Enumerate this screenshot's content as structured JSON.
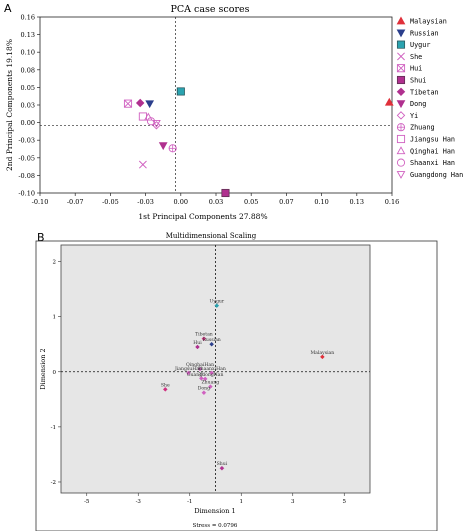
{
  "panel_labels": [
    "A",
    "B"
  ],
  "chart_data": [
    {
      "type": "scatter",
      "title": "PCA case scores",
      "xlabel": "1st Principal Components 27.88%",
      "ylabel": "2nd Principal Components 19.18%",
      "xlim": [
        -0.1,
        0.16
      ],
      "ylim": [
        -0.1,
        0.16
      ],
      "xticks": [
        -0.1,
        -0.07,
        -0.05,
        -0.03,
        0.0,
        0.03,
        0.05,
        0.07,
        0.1,
        0.13,
        0.16
      ],
      "xtick_labels": [
        "-0.10",
        "-0.07",
        "-0.05",
        "-0.03",
        "0.00",
        "0.03",
        "0.05",
        "0.07",
        "0.10",
        "0.13",
        "0.16"
      ],
      "yticks": [
        -0.1,
        -0.08,
        -0.05,
        -0.03,
        0.0,
        0.03,
        0.05,
        0.08,
        0.1,
        0.13,
        0.16
      ],
      "ytick_labels": [
        "-0.10",
        "-0.08",
        "-0.05",
        "-0.03",
        "0.00",
        "0.03",
        "0.05",
        "0.08",
        "0.10",
        "0.13",
        "0.16"
      ],
      "reference_lines": {
        "x": 0,
        "y": 0
      },
      "legend_position": "right",
      "series": [
        {
          "name": "Malaysian",
          "marker": "triangle-up-filled",
          "color": "#e0303a",
          "x": 0.158,
          "y": 0.034
        },
        {
          "name": "Russian",
          "marker": "triangle-down-filled",
          "color": "#2b3f8c",
          "x": -0.019,
          "y": 0.032
        },
        {
          "name": "Uygur",
          "marker": "square-filled",
          "color": "#2aa3b0",
          "x": 0.004,
          "y": 0.05
        },
        {
          "name": "She",
          "marker": "x",
          "color": "#d060c0",
          "x": -0.024,
          "y": -0.058
        },
        {
          "name": "Hui",
          "marker": "square-x",
          "color": "#d060c0",
          "x": -0.035,
          "y": 0.032
        },
        {
          "name": "Shui",
          "marker": "square-filled",
          "color": "#b0308f",
          "x": 0.037,
          "y": -0.1
        },
        {
          "name": "Tibetan",
          "marker": "diamond-filled",
          "color": "#b0308f",
          "x": -0.026,
          "y": 0.033
        },
        {
          "name": "Dong",
          "marker": "triangle-down-filled",
          "color": "#b0308f",
          "x": -0.009,
          "y": -0.03
        },
        {
          "name": "Yi",
          "marker": "diamond",
          "color": "#d060c0",
          "x": -0.014,
          "y": 0.0
        },
        {
          "name": "Zhuang",
          "marker": "circle-plus",
          "color": "#d060c0",
          "x": -0.002,
          "y": -0.034
        },
        {
          "name": "Jiangsu Han",
          "marker": "square",
          "color": "#d060c0",
          "x": -0.024,
          "y": 0.013
        },
        {
          "name": "Qinghai Han",
          "marker": "triangle-up",
          "color": "#d060c0",
          "x": -0.02,
          "y": 0.012
        },
        {
          "name": "Shaanxi Han",
          "marker": "circle",
          "color": "#d060c0",
          "x": -0.018,
          "y": 0.006
        },
        {
          "name": "Guangdong Han",
          "marker": "triangle-down",
          "color": "#d060c0",
          "x": -0.014,
          "y": 0.003
        }
      ]
    },
    {
      "type": "scatter",
      "title": "Multidimensional Scaling",
      "xlabel": "Dimension 1",
      "ylabel": "Dimension 2",
      "xlim": [
        -6,
        6
      ],
      "ylim": [
        -2.2,
        2.3
      ],
      "xticks": [
        -5,
        -3,
        -1,
        1,
        3,
        5
      ],
      "xtick_labels": [
        "-5",
        "-3",
        "-1",
        "1",
        "3",
        "5"
      ],
      "yticks": [
        2,
        1,
        0,
        -1,
        -2
      ],
      "ytick_labels": [
        "2",
        "1",
        "0",
        "-1",
        "-2"
      ],
      "reference_lines": {
        "x": 0,
        "y": 0
      },
      "footnote": "Stress = 0.0796",
      "points": [
        {
          "label": "Uygur",
          "color": "#2aa3b0",
          "x": 0.05,
          "y": 1.2
        },
        {
          "label": "Tibetan",
          "color": "#d03080",
          "x": -0.45,
          "y": 0.6
        },
        {
          "label": "Russian",
          "color": "#2b3f8c",
          "x": -0.15,
          "y": 0.5
        },
        {
          "label": "Hui",
          "color": "#b0308f",
          "x": -0.7,
          "y": 0.45
        },
        {
          "label": "Malaysian",
          "color": "#e0303a",
          "x": 4.15,
          "y": 0.27
        },
        {
          "label": "QinghaiHan",
          "color": "#d060c0",
          "x": -0.6,
          "y": 0.05
        },
        {
          "label": "JiangsuHan",
          "color": "#d060c0",
          "x": -1.05,
          "y": -0.02
        },
        {
          "label": "ShaanxiHan",
          "color": "#d060c0",
          "x": -0.15,
          "y": -0.02
        },
        {
          "label": "Yi",
          "color": "#d060c0",
          "x": -0.55,
          "y": -0.12
        },
        {
          "label": "GuangdongHan",
          "color": "#d060c0",
          "x": -0.4,
          "y": -0.13
        },
        {
          "label": "She",
          "color": "#d03080",
          "x": -1.95,
          "y": -0.32
        },
        {
          "label": "Zhuang",
          "color": "#d060c0",
          "x": -0.2,
          "y": -0.27
        },
        {
          "label": "Dong",
          "color": "#d060c0",
          "x": -0.45,
          "y": -0.38
        },
        {
          "label": "Shui",
          "color": "#b0308f",
          "x": 0.25,
          "y": -1.75
        }
      ]
    }
  ]
}
